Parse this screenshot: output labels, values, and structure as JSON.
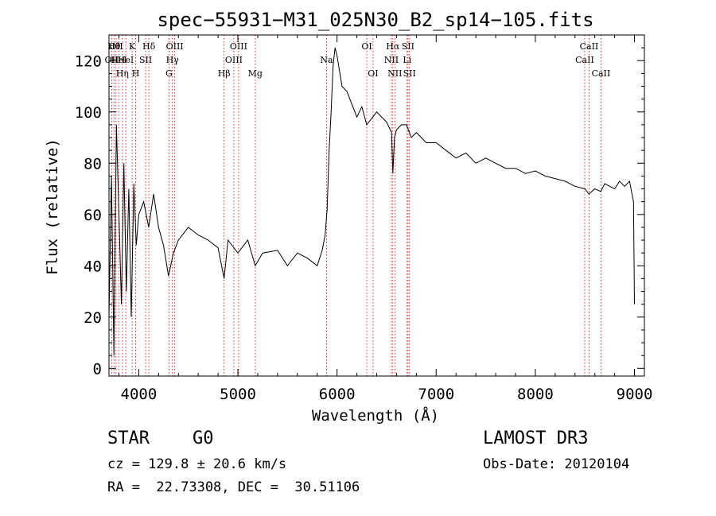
{
  "chart_data": {
    "type": "line",
    "title": "spec−55931−M31_025N30_B2_sp14−105.fits",
    "xlabel": "Wavelength (Å)",
    "ylabel": "Flux (relative)",
    "xlim": [
      3700,
      9100
    ],
    "ylim": [
      -3,
      130
    ],
    "xticks": [
      4000,
      5000,
      6000,
      7000,
      8000,
      9000
    ],
    "yticks": [
      0,
      20,
      40,
      60,
      80,
      100,
      120
    ],
    "grid": false,
    "line_color": "#000000",
    "marker_color": "#cc0000",
    "series": [
      {
        "x": [
          3700,
          3725,
          3750,
          3775,
          3800,
          3825,
          3850,
          3875,
          3900,
          3925,
          3950,
          3975,
          4000,
          4050,
          4100,
          4150,
          4200,
          4250,
          4300,
          4350,
          4400,
          4500,
          4600,
          4700,
          4800,
          4861,
          4900,
          5000,
          5100,
          5175,
          5250,
          5400,
          5500,
          5600,
          5700,
          5800,
          5850,
          5880,
          5900,
          5920,
          5940,
          5960,
          5980,
          6000,
          6050,
          6100,
          6150,
          6200,
          6250,
          6300,
          6400,
          6500,
          6550,
          6563,
          6580,
          6600,
          6650,
          6700,
          6750,
          6800,
          6900,
          7000,
          7100,
          7200,
          7300,
          7400,
          7500,
          7600,
          7700,
          7800,
          7900,
          8000,
          8100,
          8200,
          8300,
          8400,
          8500,
          8540,
          8600,
          8660,
          8700,
          8800,
          8850,
          8900,
          8950,
          8990,
          9000
        ],
        "y": [
          20,
          75,
          5,
          95,
          60,
          25,
          80,
          30,
          70,
          20,
          72,
          48,
          60,
          65,
          55,
          68,
          55,
          48,
          36,
          45,
          50,
          55,
          52,
          50,
          47,
          35,
          50,
          45,
          50,
          40,
          45,
          46,
          40,
          45,
          43,
          40,
          46,
          52,
          62,
          85,
          100,
          118,
          125,
          122,
          110,
          108,
          103,
          98,
          102,
          95,
          100,
          96,
          92,
          76,
          90,
          93,
          95,
          95,
          90,
          92,
          88,
          88,
          85,
          82,
          84,
          80,
          82,
          80,
          78,
          78,
          76,
          77,
          75,
          74,
          73,
          71,
          70,
          68,
          70,
          69,
          72,
          70,
          73,
          71,
          73,
          65,
          25
        ]
      }
    ],
    "line_markers": [
      {
        "x": 3727,
        "label": "OII",
        "row": 2
      },
      {
        "x": 3750,
        "label": "Hθ",
        "row": 1
      },
      {
        "x": 3771,
        "label": "OII",
        "row": 1
      },
      {
        "x": 3798,
        "label": "HeI",
        "row": 2
      },
      {
        "x": 3835,
        "label": "Hη",
        "row": 3
      },
      {
        "x": 3869,
        "label": "HeI",
        "row": 2
      },
      {
        "x": 3934,
        "label": "K",
        "row": 1
      },
      {
        "x": 3969,
        "label": "H",
        "row": 3
      },
      {
        "x": 4070,
        "label": "SII",
        "row": 2
      },
      {
        "x": 4102,
        "label": "Hδ",
        "row": 1
      },
      {
        "x": 4305,
        "label": "G",
        "row": 3
      },
      {
        "x": 4340,
        "label": "Hγ",
        "row": 2
      },
      {
        "x": 4363,
        "label": "OIII",
        "row": 1
      },
      {
        "x": 4861,
        "label": "Hβ",
        "row": 3
      },
      {
        "x": 4959,
        "label": "OIII",
        "row": 2
      },
      {
        "x": 5007,
        "label": "OIII",
        "row": 1
      },
      {
        "x": 5175,
        "label": "Mg",
        "row": 3
      },
      {
        "x": 5894,
        "label": "Na",
        "row": 2
      },
      {
        "x": 6300,
        "label": "OI",
        "row": 1
      },
      {
        "x": 6363,
        "label": "OI",
        "row": 3
      },
      {
        "x": 6548,
        "label": "NII",
        "row": 2
      },
      {
        "x": 6563,
        "label": "Hα",
        "row": 1
      },
      {
        "x": 6583,
        "label": "NII",
        "row": 3
      },
      {
        "x": 6707,
        "label": "Li",
        "row": 2
      },
      {
        "x": 6716,
        "label": "SII",
        "row": 1
      },
      {
        "x": 6731,
        "label": "SII",
        "row": 3
      },
      {
        "x": 8498,
        "label": "CaII",
        "row": 2
      },
      {
        "x": 8542,
        "label": "CaII",
        "row": 1
      },
      {
        "x": 8662,
        "label": "CaII",
        "row": 3
      }
    ]
  },
  "info": {
    "object_class": "STAR",
    "subclass": "G0",
    "survey": "LAMOST DR3",
    "redshift": "cz = 129.8 ± 20.6 km/s",
    "obs_date": "Obs-Date: 20120104",
    "coords": "RA =  22.73308, DEC =  30.51106"
  }
}
